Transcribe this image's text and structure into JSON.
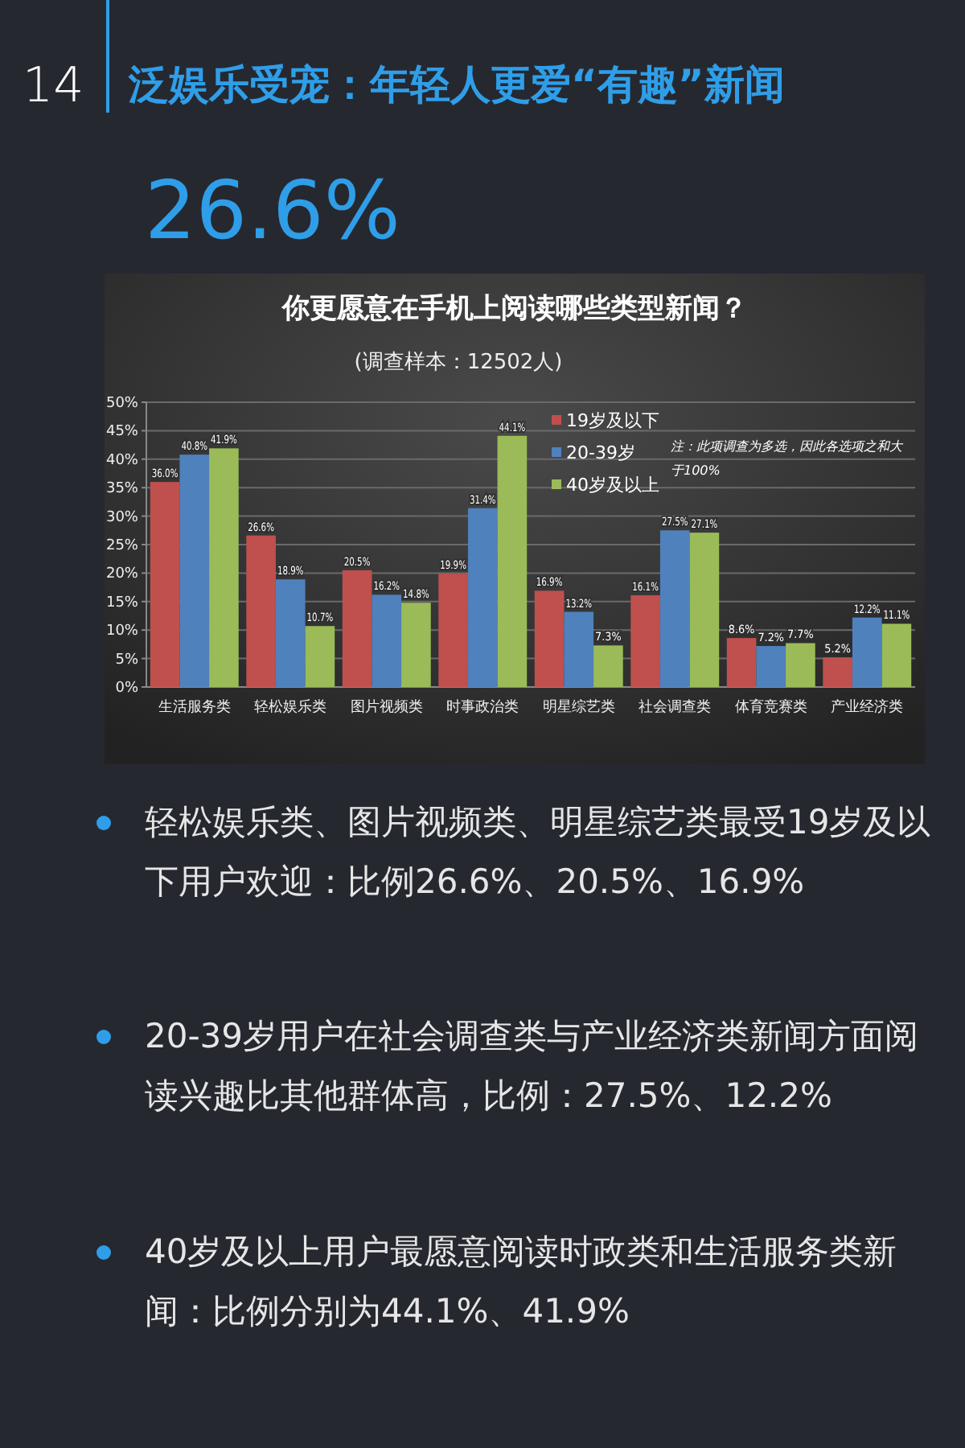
{
  "chart_data": {
    "type": "bar",
    "title": "你更愿意在手机上阅读哪些类型新闻？",
    "subtitle": "(调查样本：12502人)",
    "categories": [
      "生活服务类",
      "轻松娱乐类",
      "图片视频类",
      "时事政治类",
      "明星综艺类",
      "社会调查类",
      "体育竞赛类",
      "产业经济类"
    ],
    "series": [
      {
        "name": "19岁及以下",
        "color": "#c0504d",
        "values": [
          36.0,
          26.6,
          20.5,
          19.9,
          16.9,
          16.1,
          8.6,
          5.2
        ],
        "value_labels": [
          "36.0%",
          "26.6%",
          "20.5%",
          "19.9%",
          "16.9%",
          "16.1%",
          "8.6%",
          "5.2%"
        ]
      },
      {
        "name": "20-39岁",
        "color": "#4f81bd",
        "values": [
          40.8,
          18.9,
          16.2,
          31.4,
          13.2,
          27.5,
          7.2,
          12.2
        ],
        "value_labels": [
          "40.8%",
          "18.9%",
          "16.2%",
          "31.4%",
          "13.2%",
          "27.5%",
          "7.2%",
          "12.2%"
        ]
      },
      {
        "name": "40岁及以上",
        "color": "#9bbb59",
        "values": [
          41.9,
          10.7,
          14.8,
          44.1,
          7.3,
          27.1,
          7.7,
          11.1
        ],
        "value_labels": [
          "41.9%",
          "10.7%",
          "14.8%",
          "44.1%",
          "7.3%",
          "27.1%",
          "7.7%",
          "11.1%"
        ]
      }
    ],
    "ylim": [
      0,
      50
    ],
    "yticks": [
      {
        "value": 0,
        "label": "0%"
      },
      {
        "value": 5,
        "label": "5%"
      },
      {
        "value": 10,
        "label": "10%"
      },
      {
        "value": 15,
        "label": "15%"
      },
      {
        "value": 20,
        "label": "20%"
      },
      {
        "value": 25,
        "label": "25%"
      },
      {
        "value": 30,
        "label": "30%"
      },
      {
        "value": 35,
        "label": "35%"
      },
      {
        "value": 40,
        "label": "40%"
      },
      {
        "value": 45,
        "label": "45%"
      },
      {
        "value": 50,
        "label": "50%"
      }
    ],
    "grid": "y",
    "legend": "top right",
    "annotations": [
      "14",
      "泛娱乐受宠：年轻人更爱“有趣”新闻",
      "26.6%",
      "注：此项调查为多选，因此各选项之和大于100%",
      "轻松娱乐类、图片视频类、明星综艺类最受19岁及以下用户欢迎：比例26.6%、20.5%、16.9%",
      "20-39岁用户在社会调查类与产业经济类新闻方面阅读兴趣比其他群体高，比例：27.5%、12.2%",
      "40岁及以上用户最愿意阅读时政类和生活服务类新闻：比例分别为44.1%、41.9%"
    ]
  }
}
